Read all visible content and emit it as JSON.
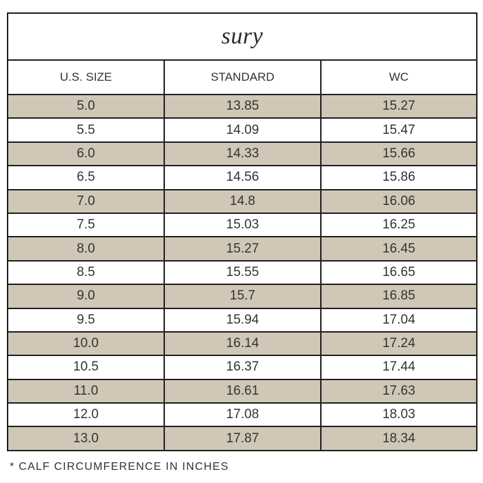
{
  "title": "sury",
  "columns": [
    "U.S. SIZE",
    "STANDARD",
    "WC"
  ],
  "rows": [
    {
      "size": "5.0",
      "standard": "13.85",
      "wc": "15.27"
    },
    {
      "size": "5.5",
      "standard": "14.09",
      "wc": "15.47"
    },
    {
      "size": "6.0",
      "standard": "14.33",
      "wc": "15.66"
    },
    {
      "size": "6.5",
      "standard": "14.56",
      "wc": "15.86"
    },
    {
      "size": "7.0",
      "standard": "14.8",
      "wc": "16.06"
    },
    {
      "size": "7.5",
      "standard": "15.03",
      "wc": "16.25"
    },
    {
      "size": "8.0",
      "standard": "15.27",
      "wc": "16.45"
    },
    {
      "size": "8.5",
      "standard": "15.55",
      "wc": "16.65"
    },
    {
      "size": "9.0",
      "standard": "15.7",
      "wc": "16.85"
    },
    {
      "size": "9.5",
      "standard": "15.94",
      "wc": "17.04"
    },
    {
      "size": "10.0",
      "standard": "16.14",
      "wc": "17.24"
    },
    {
      "size": "10.5",
      "standard": "16.37",
      "wc": "17.44"
    },
    {
      "size": "11.0",
      "standard": "16.61",
      "wc": "17.63"
    },
    {
      "size": "12.0",
      "standard": "17.08",
      "wc": "18.03"
    },
    {
      "size": "13.0",
      "standard": "17.87",
      "wc": "18.34"
    }
  ],
  "footnote": "* CALF CIRCUMFERENCE IN INCHES",
  "colors": {
    "shaded_row": "#d0c7b7",
    "border": "#1f1f1f"
  }
}
